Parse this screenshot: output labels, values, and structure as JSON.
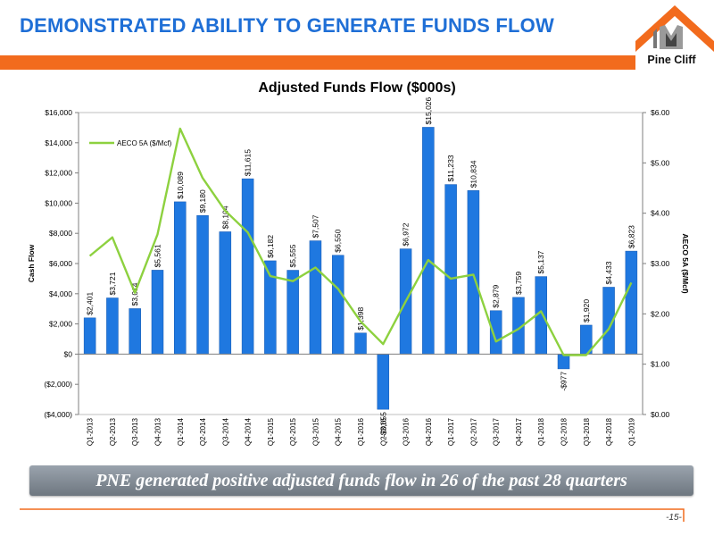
{
  "slide": {
    "title": "DEMONSTRATED ABILITY TO GENERATE FUNDS FLOW",
    "logo_text": "Pine Cliff",
    "banner_text": "PNE generated positive adjusted funds flow in 26 of the past 28 quarters",
    "page_number": "-15-",
    "accent_color": "#f26b1d",
    "title_color": "#1f6fd6"
  },
  "chart_data": {
    "type": "bar",
    "title": "Adjusted Funds Flow ($000s)",
    "ylabel": "Cash Flow",
    "y2label": "AECO 5A ($/Mcf)",
    "ylim": [
      -4000,
      16000
    ],
    "y2lim": [
      0,
      6
    ],
    "grid": false,
    "legend_position": "top-left",
    "y_ticks": [
      "$16,000",
      "$14,000",
      "$12,000",
      "$10,000",
      "$8,000",
      "$6,000",
      "$4,000",
      "$2,000",
      "$0",
      "($2,000)",
      "($4,000)"
    ],
    "y_tick_values": [
      16000,
      14000,
      12000,
      10000,
      8000,
      6000,
      4000,
      2000,
      0,
      -2000,
      -4000
    ],
    "y2_ticks": [
      "$6.00",
      "$5.00",
      "$4.00",
      "$3.00",
      "$2.00",
      "$1.00",
      "$0.00"
    ],
    "y2_tick_values": [
      6,
      5,
      4,
      3,
      2,
      1,
      0
    ],
    "categories": [
      "Q1-2013",
      "Q2-2013",
      "Q3-2013",
      "Q4-2013",
      "Q1-2014",
      "Q2-2014",
      "Q3-2014",
      "Q4-2014",
      "Q1-2015",
      "Q2-2015",
      "Q3-2015",
      "Q4-2015",
      "Q1-2016",
      "Q2-2016",
      "Q3-2016",
      "Q4-2016",
      "Q1-2017",
      "Q2-2017",
      "Q3-2017",
      "Q4-2017",
      "Q1-2018",
      "Q2-2018",
      "Q3-2018",
      "Q4-2018",
      "Q1-2019"
    ],
    "values": [
      2401,
      3721,
      3014,
      5561,
      10089,
      9180,
      8104,
      11615,
      6182,
      5555,
      7507,
      6550,
      1398,
      -3655,
      6972,
      15026,
      11233,
      10834,
      2879,
      3759,
      5137,
      -977,
      1920,
      4433,
      6823
    ],
    "value_labels": [
      "$2,401",
      "$3,721",
      "$3,014",
      "$5,561",
      "$10,089",
      "$9,180",
      "$8,104",
      "$11,615",
      "$6,182",
      "$5,555",
      "$7,507",
      "$6,550",
      "$1,398",
      "-$3,655",
      "$6,972",
      "$15,026",
      "$11,233",
      "$10,834",
      "$2,879",
      "$3,759",
      "$5,137",
      "-$977",
      "$1,920",
      "$4,433",
      "$6,823"
    ],
    "line_series": {
      "name": "AECO 5A ($/Mcf)",
      "values": [
        3.15,
        3.52,
        2.42,
        3.58,
        5.68,
        4.7,
        4.05,
        3.62,
        2.75,
        2.65,
        2.92,
        2.5,
        1.85,
        1.4,
        2.25,
        3.07,
        2.7,
        2.78,
        1.45,
        1.7,
        2.05,
        1.18,
        1.18,
        1.7,
        2.62
      ]
    },
    "bar_color": "#1f78e0",
    "line_color": "#8dd13f"
  }
}
